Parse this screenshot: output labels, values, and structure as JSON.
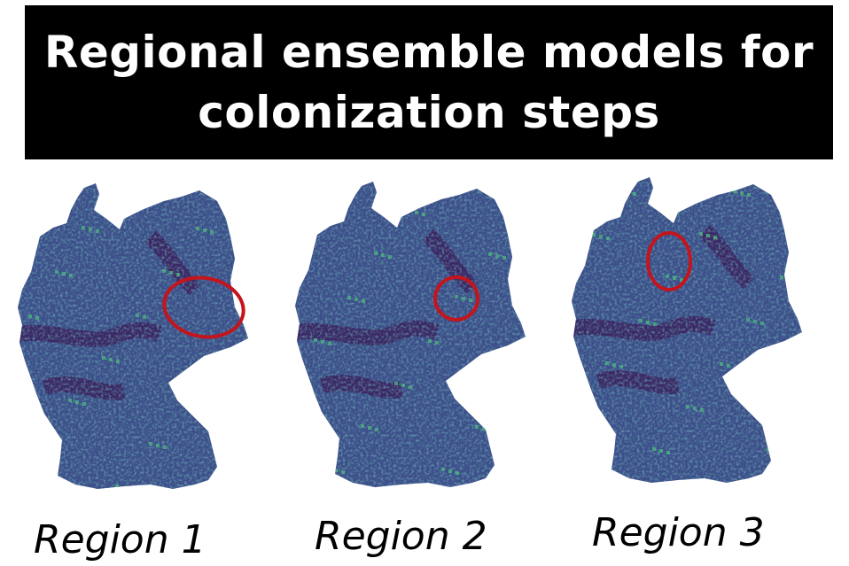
{
  "title": "Regional ensemble models for\ncolonization steps",
  "palette": {
    "dark": "#3b1f5e",
    "mid": "#3d4f8a",
    "base": "#3a6a8c",
    "teal": "#2a8f8a",
    "bright": "#4cc17a",
    "highlight_circle": "#c4141c"
  },
  "panels": [
    {
      "label": "Region 1"
    },
    {
      "label": "Region 2"
    },
    {
      "label": "Region 3"
    }
  ]
}
